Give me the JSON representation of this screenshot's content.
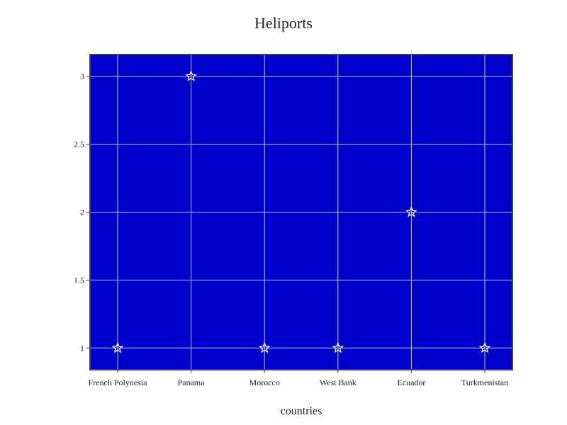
{
  "chart_data": {
    "type": "scatter",
    "title": "Heliports",
    "xlabel": "countries",
    "ylabel": "",
    "categories": [
      "French Polynesia",
      "Panama",
      "Morocco",
      "West Bank",
      "Ecuador",
      "Turkmenistan"
    ],
    "values": [
      1,
      3,
      1,
      1,
      2,
      1
    ],
    "ylim": [
      0.84,
      3.16
    ],
    "yticks": [
      1,
      1.5,
      2,
      2.5,
      3
    ],
    "ytick_labels": [
      "1",
      "1.5",
      "2",
      "2.5",
      "3"
    ],
    "marker": "star-open",
    "grid": true,
    "legend": "none",
    "colors": {
      "plot_background": "#0000cc",
      "grid": "#c8c8c8",
      "marker": "#ffffff",
      "frame": "#444444"
    }
  }
}
